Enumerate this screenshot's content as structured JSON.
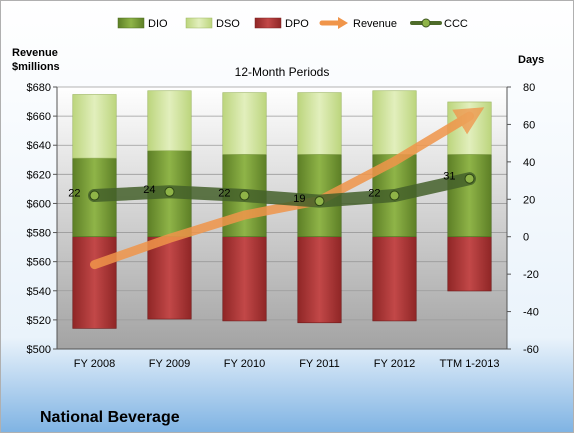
{
  "chart_data": {
    "type": "bar",
    "title": "12-Month Periods",
    "company": "National Beverage",
    "left_axis_label_line1": "Revenue",
    "left_axis_label_line2": "$millions",
    "right_axis_label": "Days",
    "categories": [
      "FY 2008",
      "FY 2009",
      "FY 2010",
      "FY 2011",
      "FY 2012",
      "TTM 1-2013"
    ],
    "left_ylim": [
      500,
      680
    ],
    "left_ticks": [
      500,
      520,
      540,
      560,
      580,
      600,
      620,
      640,
      660,
      680
    ],
    "left_tick_labels": [
      "$500",
      "$520",
      "$540",
      "$560",
      "$580",
      "$600",
      "$620",
      "$640",
      "$660",
      "$680"
    ],
    "right_ylim": [
      -60,
      80
    ],
    "right_ticks": [
      -60,
      -40,
      -20,
      0,
      20,
      40,
      60,
      80
    ],
    "right_tick_labels": [
      "-60",
      "-40",
      "-20",
      "0",
      "20",
      "40",
      "60",
      "80"
    ],
    "series": [
      {
        "name": "DIO",
        "axis": "days",
        "color": "#7ea43a",
        "values": [
          42,
          46,
          44,
          44,
          44,
          44
        ]
      },
      {
        "name": "DSO",
        "axis": "days",
        "color": "#d4e6a3",
        "values": [
          34,
          32,
          33,
          33,
          34,
          28
        ]
      },
      {
        "name": "DPO",
        "axis": "days",
        "color": "#b33b3b",
        "values": [
          -49,
          -44,
          -45,
          -46,
          -45,
          -29
        ]
      },
      {
        "name": "Revenue",
        "axis": "revenue",
        "color": "#f0954a",
        "values": [
          558,
          576,
          592,
          602,
          629,
          660
        ]
      },
      {
        "name": "CCC",
        "axis": "days",
        "color": "#4e6b2a",
        "values": [
          22,
          24,
          22,
          19,
          22,
          31
        ]
      }
    ],
    "ccc_labels": [
      "22",
      "24",
      "22",
      "19",
      "22",
      "31"
    ],
    "legend_position": "top",
    "grid": true
  }
}
